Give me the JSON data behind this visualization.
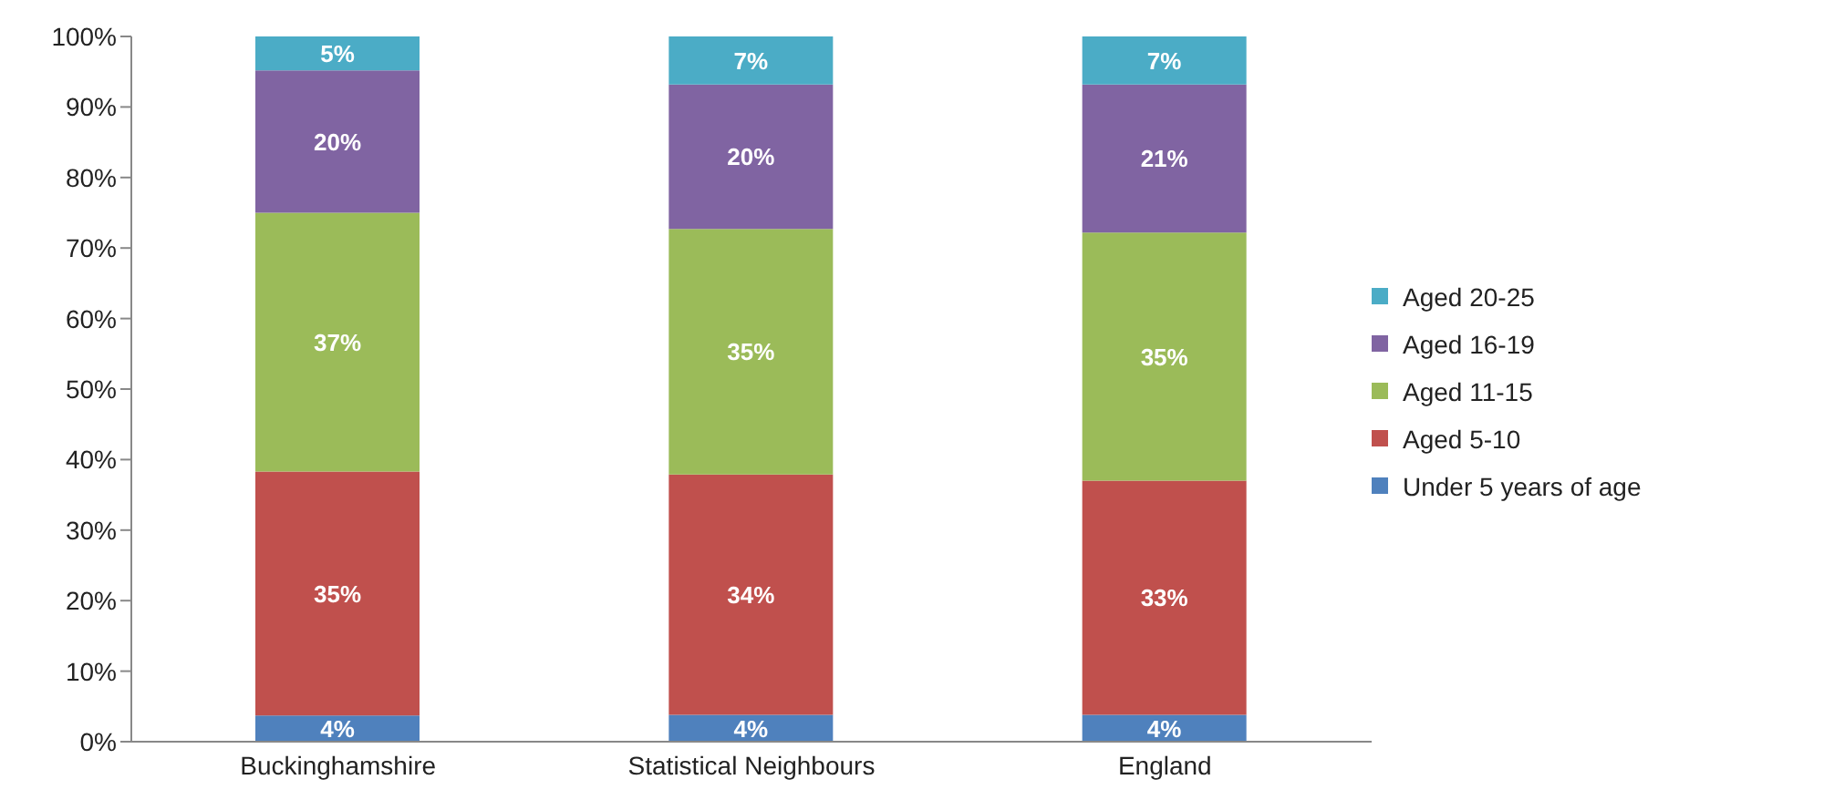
{
  "chart_data": {
    "type": "bar",
    "stacked": true,
    "categories": [
      "Buckinghamshire",
      "Statistical Neighbours",
      "England"
    ],
    "series": [
      {
        "name": "Under 5 years of age",
        "color": "#4f81bd",
        "values": [
          3.7,
          3.8,
          3.8
        ],
        "value_labels": [
          "4%",
          "4%",
          "4%"
        ]
      },
      {
        "name": "Aged 5-10",
        "color": "#c0504d",
        "values": [
          34.6,
          34.1,
          33.2
        ],
        "value_labels": [
          "35%",
          "34%",
          "33%"
        ]
      },
      {
        "name": "Aged 11-15",
        "color": "#9bbb59",
        "values": [
          36.7,
          34.8,
          35.2
        ],
        "value_labels": [
          "37%",
          "35%",
          "35%"
        ]
      },
      {
        "name": "Aged 16-19",
        "color": "#8064a2",
        "values": [
          20.2,
          20.5,
          21
        ],
        "value_labels": [
          "20%",
          "20%",
          "21%"
        ]
      },
      {
        "name": "Aged 20-25",
        "color": "#4bacc6",
        "values": [
          4.8,
          6.8,
          6.8
        ],
        "value_labels": [
          "5%",
          "7%",
          "7%"
        ]
      }
    ],
    "ylim": [
      0,
      100
    ],
    "yticks": [
      {
        "value": 0,
        "label": "0%"
      },
      {
        "value": 10,
        "label": "10%"
      },
      {
        "value": 20,
        "label": "20%"
      },
      {
        "value": 30,
        "label": "30%"
      },
      {
        "value": 40,
        "label": "40%"
      },
      {
        "value": 50,
        "label": "50%"
      },
      {
        "value": 60,
        "label": "60%"
      },
      {
        "value": 70,
        "label": "70%"
      },
      {
        "value": 80,
        "label": "80%"
      },
      {
        "value": 90,
        "label": "90%"
      },
      {
        "value": 100,
        "label": "100%"
      }
    ],
    "grid": false,
    "legend": "right"
  }
}
